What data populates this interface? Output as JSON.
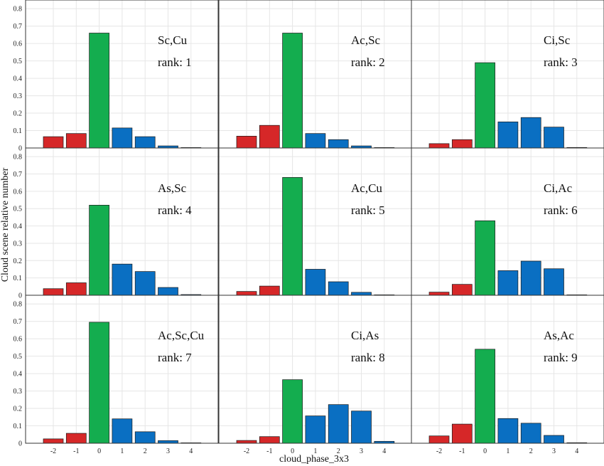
{
  "figure": {
    "ylabel": "Cloud scene relative number",
    "xlabel": "cloud_phase_3x3"
  },
  "colors": {
    "negative": "#d62728",
    "zero": "#14ad4f",
    "positive": "#0a6fc2",
    "grid": "#e6e6e6",
    "axis": "#333333"
  },
  "chart_data": [
    {
      "type": "bar",
      "panel": "Sc,Cu",
      "rank_label": "rank: 1",
      "categories": [
        "-2",
        "-1",
        "0",
        "1",
        "2",
        "3",
        "4"
      ],
      "values": [
        0.065,
        0.083,
        0.66,
        0.115,
        0.065,
        0.012,
        0.002
      ],
      "ylim": [
        0,
        0.85
      ],
      "yticks": [
        "0",
        "0.1",
        "0.2",
        "0.3",
        "0.4",
        "0.5",
        "0.6",
        "0.7",
        "0.8"
      ],
      "grid": true
    },
    {
      "type": "bar",
      "panel": "Ac,Sc",
      "rank_label": "rank: 2",
      "categories": [
        "-2",
        "-1",
        "0",
        "1",
        "2",
        "3",
        "4"
      ],
      "values": [
        0.068,
        0.13,
        0.66,
        0.083,
        0.048,
        0.012,
        0.002
      ],
      "ylim": [
        0,
        0.85
      ],
      "grid": true
    },
    {
      "type": "bar",
      "panel": "Ci,Sc",
      "rank_label": "rank: 3",
      "categories": [
        "-2",
        "-1",
        "0",
        "1",
        "2",
        "3",
        "4"
      ],
      "values": [
        0.025,
        0.048,
        0.49,
        0.15,
        0.175,
        0.12,
        0.003
      ],
      "ylim": [
        0,
        0.85
      ],
      "grid": true
    },
    {
      "type": "bar",
      "panel": "As,Sc",
      "rank_label": "rank: 4",
      "categories": [
        "-2",
        "-1",
        "0",
        "1",
        "2",
        "3",
        "4"
      ],
      "values": [
        0.038,
        0.072,
        0.52,
        0.18,
        0.137,
        0.045,
        0.004
      ],
      "ylim": [
        0,
        0.85
      ],
      "yticks": [
        "0",
        "0.1",
        "0.2",
        "0.3",
        "0.4",
        "0.5",
        "0.6",
        "0.7",
        "0.8"
      ],
      "grid": true
    },
    {
      "type": "bar",
      "panel": "Ac,Cu",
      "rank_label": "rank: 5",
      "categories": [
        "-2",
        "-1",
        "0",
        "1",
        "2",
        "3",
        "4"
      ],
      "values": [
        0.022,
        0.053,
        0.68,
        0.15,
        0.078,
        0.017,
        0.001
      ],
      "ylim": [
        0,
        0.85
      ],
      "grid": true
    },
    {
      "type": "bar",
      "panel": "Ci,Ac",
      "rank_label": "rank: 6",
      "categories": [
        "-2",
        "-1",
        "0",
        "1",
        "2",
        "3",
        "4"
      ],
      "values": [
        0.018,
        0.063,
        0.43,
        0.142,
        0.197,
        0.153,
        0.002
      ],
      "ylim": [
        0,
        0.85
      ],
      "grid": true
    },
    {
      "type": "bar",
      "panel": "Ac,Sc,Cu",
      "rank_label": "rank: 7",
      "categories": [
        "-2",
        "-1",
        "0",
        "1",
        "2",
        "3",
        "4"
      ],
      "values": [
        0.025,
        0.057,
        0.695,
        0.14,
        0.066,
        0.015,
        0.0
      ],
      "ylim": [
        0,
        0.85
      ],
      "yticks": [
        "0",
        "0.1",
        "0.2",
        "0.3",
        "0.4",
        "0.5",
        "0.6",
        "0.7",
        "0.8"
      ],
      "xticks": [
        "-2",
        "-1",
        "0",
        "1",
        "2",
        "3",
        "4"
      ],
      "grid": true
    },
    {
      "type": "bar",
      "panel": "Ci,As",
      "rank_label": "rank: 8",
      "categories": [
        "-2",
        "-1",
        "0",
        "1",
        "2",
        "3",
        "4"
      ],
      "values": [
        0.016,
        0.038,
        0.365,
        0.157,
        0.222,
        0.185,
        0.011
      ],
      "ylim": [
        0,
        0.85
      ],
      "xticks": [
        "-2",
        "-1",
        "0",
        "1",
        "2",
        "3",
        "4"
      ],
      "grid": true
    },
    {
      "type": "bar",
      "panel": "As,Ac",
      "rank_label": "rank: 9",
      "categories": [
        "-2",
        "-1",
        "0",
        "1",
        "2",
        "3",
        "4"
      ],
      "values": [
        0.042,
        0.11,
        0.54,
        0.142,
        0.115,
        0.045,
        0.003
      ],
      "ylim": [
        0,
        0.85
      ],
      "xticks": [
        "-2",
        "-1",
        "0",
        "1",
        "2",
        "3",
        "4"
      ],
      "grid": true
    }
  ]
}
